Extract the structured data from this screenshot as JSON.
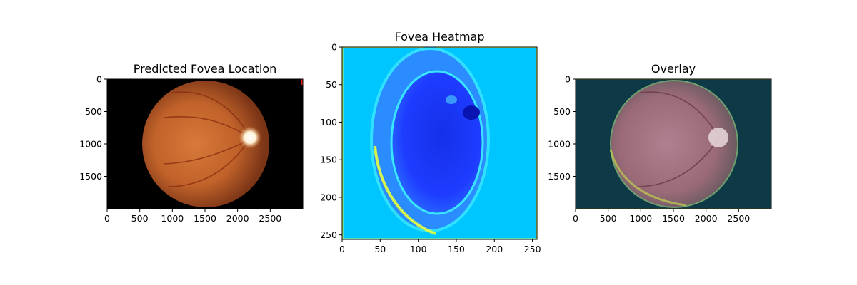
{
  "chart_data": [
    {
      "type": "image",
      "title": "Predicted Fovea Location",
      "xlim": [
        0,
        3000
      ],
      "ylim": [
        2000,
        0
      ],
      "xticks": [
        0,
        500,
        1000,
        1500,
        2000,
        2500
      ],
      "yticks": [
        0,
        500,
        1000,
        1500
      ],
      "content": "fundus photograph: orange retina disc on black background with bright optic disc on right"
    },
    {
      "type": "heatmap",
      "title": "Fovea Heatmap",
      "xlim": [
        0,
        256
      ],
      "ylim": [
        256,
        0
      ],
      "xticks": [
        0,
        50,
        100,
        150,
        200,
        250
      ],
      "yticks": [
        0,
        50,
        100,
        150,
        200,
        250
      ],
      "colormap": "jet",
      "content": "cyan background with blue elliptical region and bright cyan/yellow ring edges"
    },
    {
      "type": "image",
      "title": "Overlay",
      "xlim": [
        0,
        3000
      ],
      "ylim": [
        2000,
        0
      ],
      "xticks": [
        0,
        500,
        1000,
        1500,
        2000,
        2500
      ],
      "yticks": [
        0,
        500,
        1000,
        1500
      ],
      "content": "fundus image blended with heatmap: dark teal background, pinkish retina disc"
    }
  ],
  "colors": {
    "fundus_orange": "#c0622a",
    "fundus_dark": "#7a3416",
    "optic_disc": "#fff3d8",
    "heat_cyan": "#00c6ff",
    "heat_blue": "#1e3cff",
    "heat_deep": "#0a14b0",
    "heat_yellow": "#e6ff3c",
    "overlay_bg": "#0e3a48",
    "overlay_disc": "#9a6a78"
  }
}
